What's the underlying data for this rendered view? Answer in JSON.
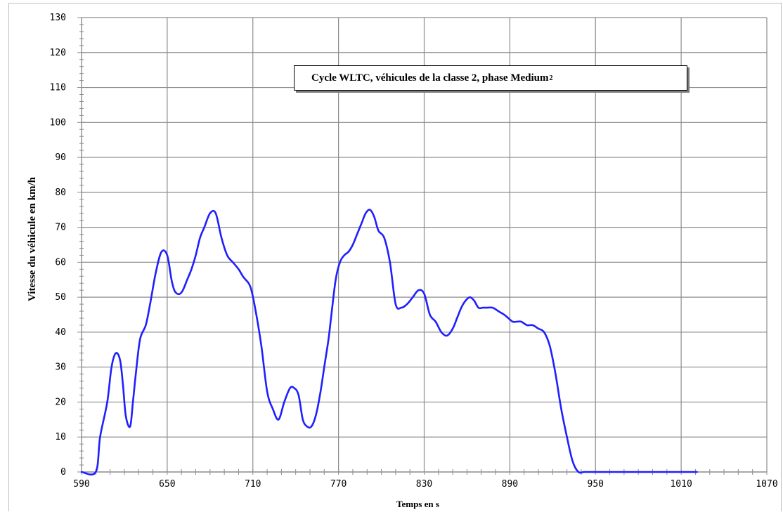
{
  "chart_data": {
    "type": "line",
    "title": "Cycle WLTC, véhicules de la classe 2, phase Medium",
    "title_subscript": "2",
    "xlabel": "Temps en s",
    "ylabel": "Vitesse du véhicule en km/h",
    "xlim": [
      590,
      1070
    ],
    "ylim": [
      0,
      130
    ],
    "xticks": [
      590,
      650,
      710,
      770,
      830,
      890,
      950,
      1010,
      1070
    ],
    "yticks": [
      0,
      10,
      20,
      30,
      40,
      50,
      60,
      70,
      80,
      90,
      100,
      110,
      120,
      130
    ],
    "grid": true,
    "line_color": "#1f1fff",
    "series": [
      {
        "x": [
          590,
          600,
          603,
          608,
          611,
          614,
          617,
          619,
          621,
          624,
          626,
          628,
          631,
          635,
          638,
          642,
          646,
          650,
          653,
          655,
          657,
          659,
          661,
          664,
          667,
          670,
          673,
          676,
          680,
          684,
          688,
          692,
          696,
          700,
          703,
          705,
          707,
          709,
          712,
          716,
          720,
          724,
          728,
          732,
          736,
          739,
          742,
          745,
          748,
          751,
          754,
          757,
          760,
          763,
          765,
          768,
          771,
          774,
          777,
          780,
          783,
          786,
          789,
          792,
          795,
          798,
          802,
          806,
          810,
          814,
          818,
          822,
          826,
          830,
          834,
          838,
          842,
          846,
          850,
          853,
          856,
          859,
          862,
          865,
          868,
          871,
          874,
          878,
          882,
          886,
          889,
          892,
          895,
          898,
          902,
          906,
          910,
          914,
          918,
          922,
          926,
          930,
          934,
          938,
          942,
          946,
          950,
          954,
          958,
          962,
          966,
          969,
          972,
          975,
          978,
          981,
          983,
          985,
          1000,
          1021
        ],
        "values": [
          0,
          0,
          10,
          20,
          30,
          34,
          32,
          25,
          16,
          13,
          20,
          28,
          38,
          42,
          48,
          57,
          63,
          62,
          55,
          52,
          51,
          51,
          52,
          55,
          58,
          62,
          67,
          70,
          74,
          74,
          67,
          62,
          60,
          58,
          56,
          55,
          54,
          52,
          46,
          36,
          23,
          18,
          15,
          20,
          24,
          24,
          22,
          15,
          13,
          13,
          16,
          22,
          30,
          38,
          45,
          55,
          60,
          62,
          63,
          65,
          68,
          71,
          74,
          75,
          73,
          69,
          67,
          60,
          48,
          47,
          48,
          50,
          52,
          51,
          45,
          43,
          40,
          39,
          41,
          44,
          47,
          49,
          50,
          49,
          47,
          47,
          47,
          47,
          46,
          45,
          44,
          43,
          43,
          43,
          42,
          42,
          41,
          40,
          36,
          28,
          18,
          10,
          3,
          0,
          0,
          0,
          0,
          0,
          0,
          0,
          0,
          0,
          0,
          0,
          0,
          0,
          0,
          0,
          0,
          0
        ]
      }
    ]
  }
}
